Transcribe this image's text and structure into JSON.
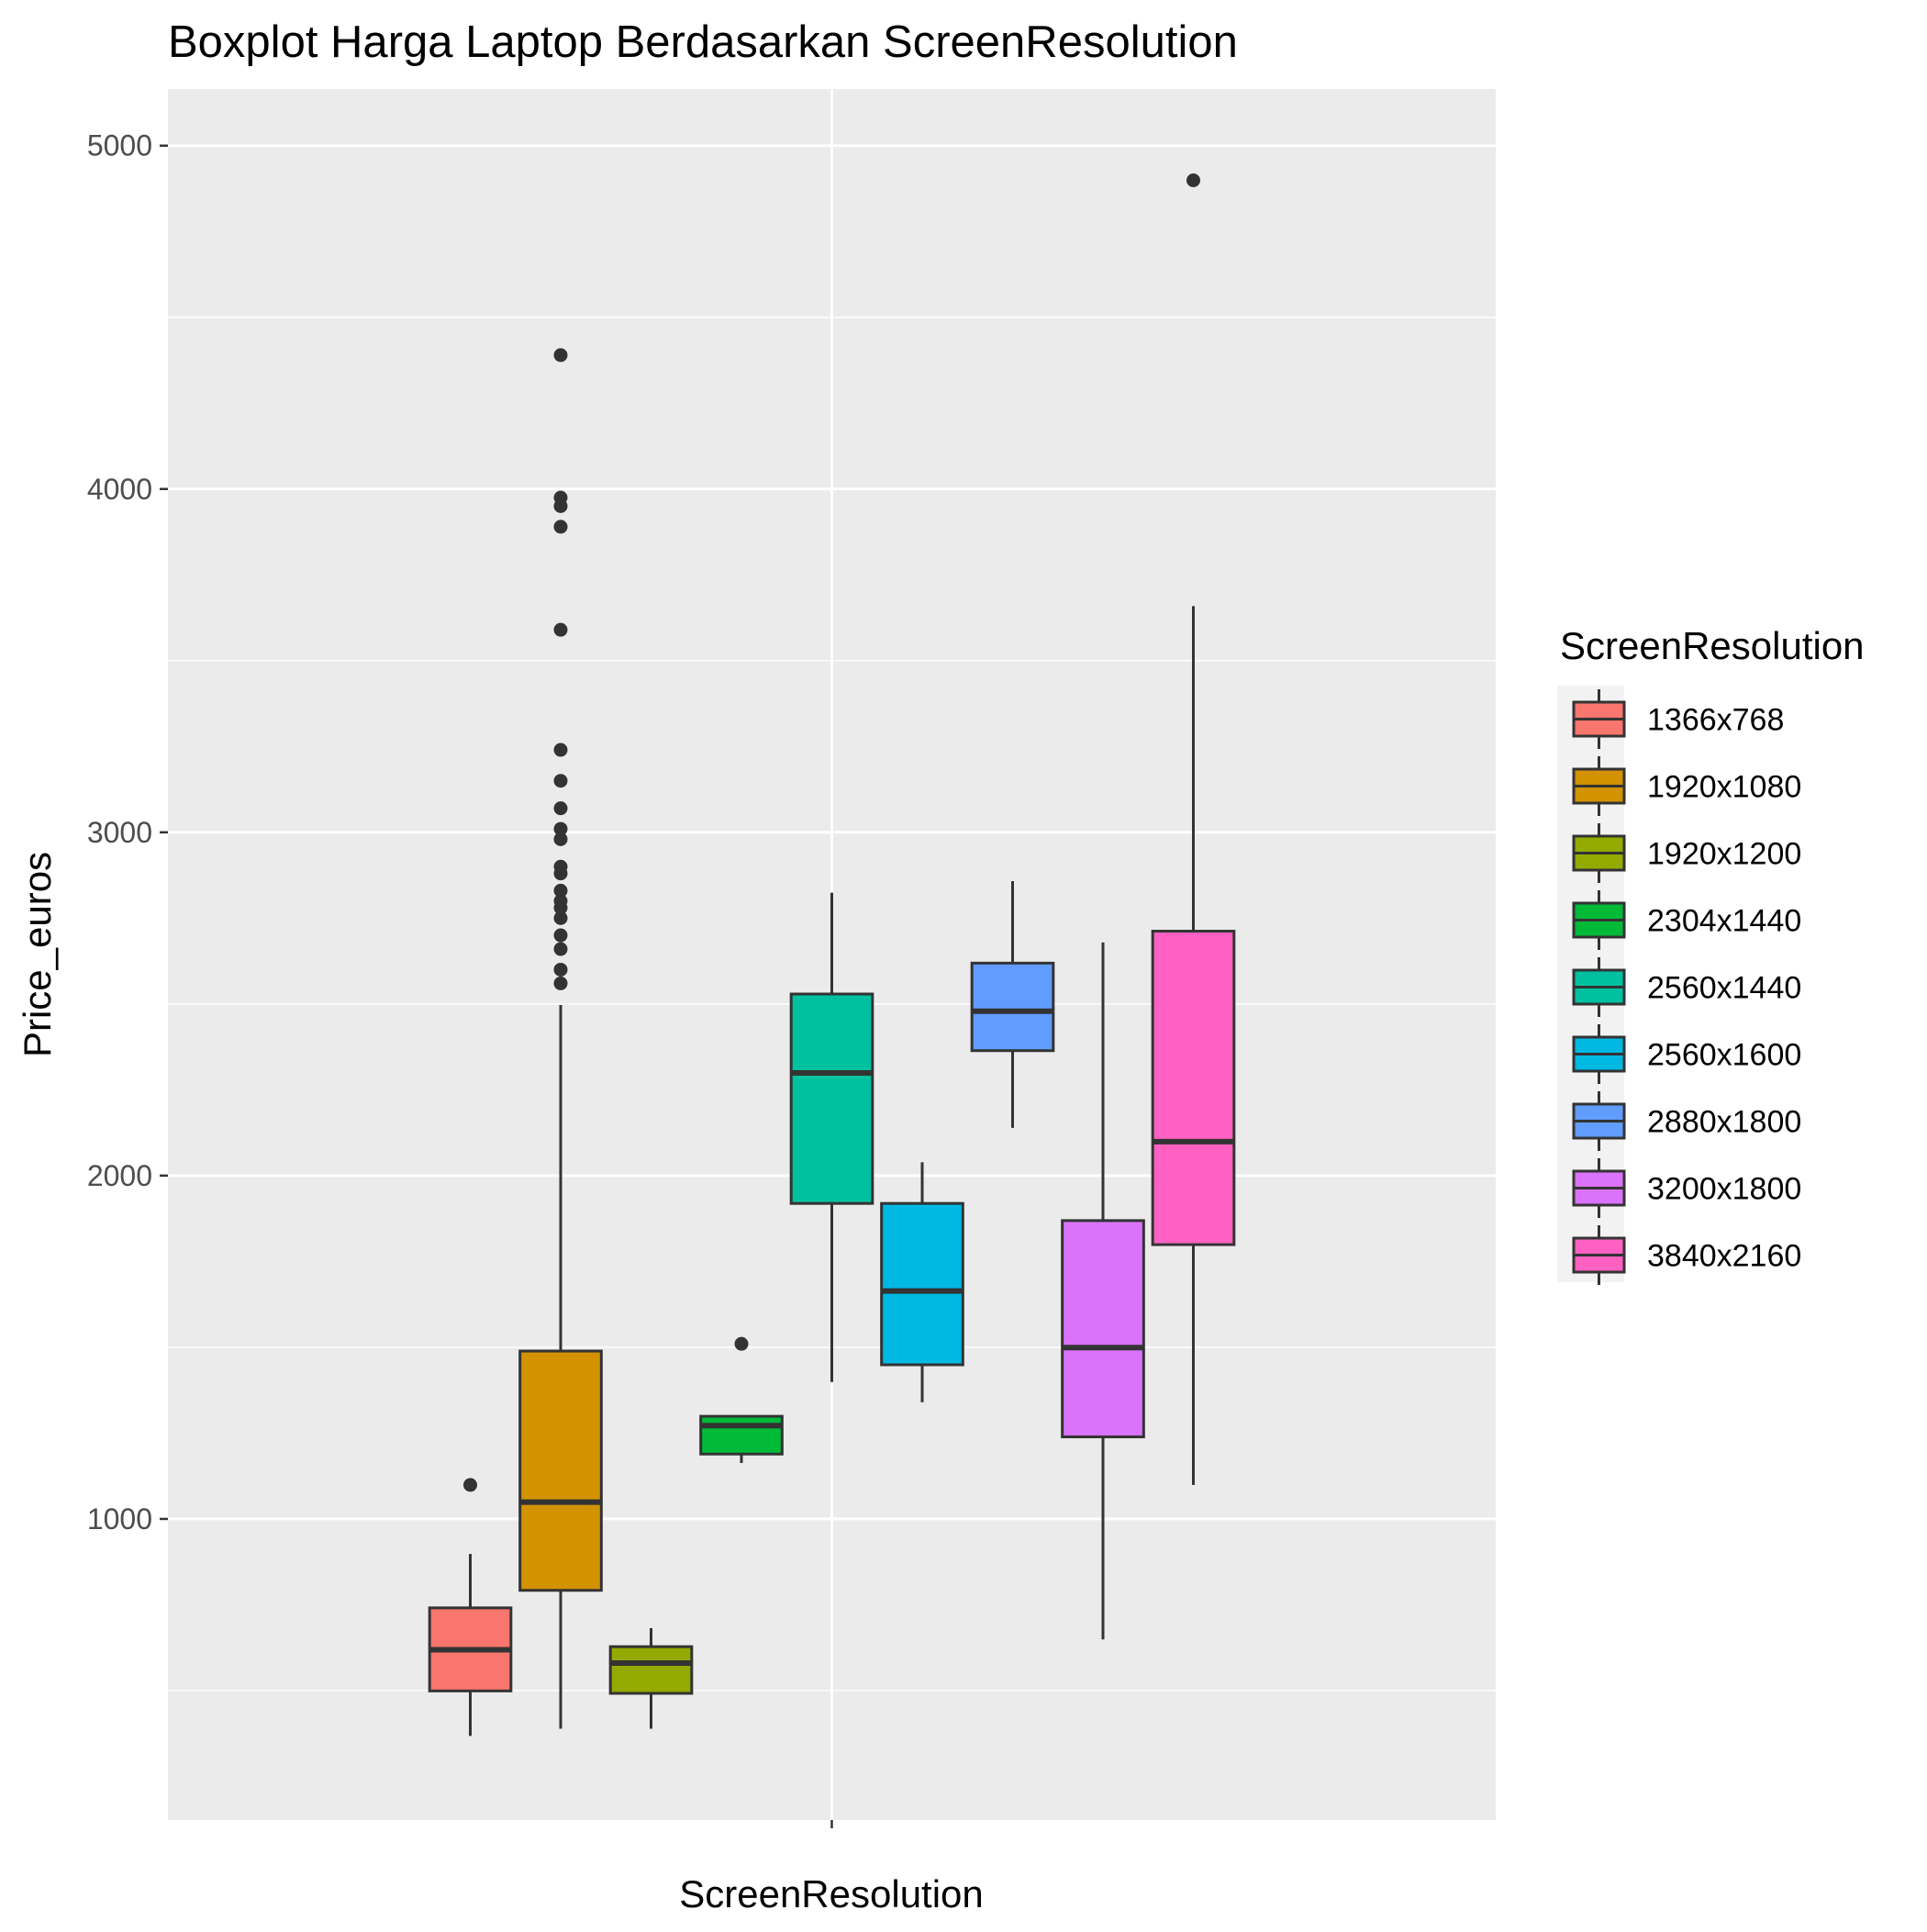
{
  "chart_data": {
    "type": "boxplot",
    "title": "Boxplot Harga Laptop Berdasarkan ScreenResolution",
    "xlabel": "ScreenResolution",
    "ylabel": "Price_euros",
    "ylim": [
      123,
      5165
    ],
    "yticks": [
      1000,
      2000,
      3000,
      4000,
      5000
    ],
    "grid": true,
    "legend": {
      "title": "ScreenResolution",
      "position": "right"
    },
    "series": [
      {
        "name": "1366x768",
        "color": "#F8766D",
        "min": 368,
        "q1": 499,
        "median": 619,
        "q3": 741,
        "max": 898,
        "outliers": [
          1099
        ]
      },
      {
        "name": "1920x1080",
        "color": "#D39200",
        "min": 389,
        "q1": 792,
        "median": 1049,
        "q3": 1489,
        "max": 2497,
        "outliers": [
          2560,
          2600,
          2660,
          2700,
          2750,
          2780,
          2800,
          2830,
          2880,
          2900,
          2980,
          3010,
          3070,
          3150,
          3240,
          3590,
          3890,
          3950,
          3975,
          4390
        ]
      },
      {
        "name": "1920x1200",
        "color": "#93AA00",
        "min": 389,
        "q1": 492,
        "median": 580,
        "q3": 628,
        "max": 682,
        "outliers": []
      },
      {
        "name": "2304x1440",
        "color": "#00BA38",
        "min": 1163,
        "q1": 1189,
        "median": 1272,
        "q3": 1299,
        "max": 1299,
        "outliers": [
          1510
        ]
      },
      {
        "name": "2560x1440",
        "color": "#00C19F",
        "min": 1399,
        "q1": 1919,
        "median": 2299,
        "q3": 2529,
        "max": 2824,
        "outliers": []
      },
      {
        "name": "2560x1600",
        "color": "#00B9E3",
        "min": 1340,
        "q1": 1449,
        "median": 1664,
        "q3": 1919,
        "max": 2039,
        "outliers": []
      },
      {
        "name": "2880x1800",
        "color": "#619CFF",
        "min": 2139,
        "q1": 2364,
        "median": 2479,
        "q3": 2619,
        "max": 2858,
        "outliers": []
      },
      {
        "name": "3200x1800",
        "color": "#DB72FB",
        "min": 649,
        "q1": 1239,
        "median": 1499,
        "q3": 1869,
        "max": 2679,
        "outliers": []
      },
      {
        "name": "3840x2160",
        "color": "#FF61C3",
        "min": 1099,
        "q1": 1799,
        "median": 2099,
        "q3": 2712,
        "max": 3659,
        "outliers": [
          4899
        ]
      }
    ]
  }
}
